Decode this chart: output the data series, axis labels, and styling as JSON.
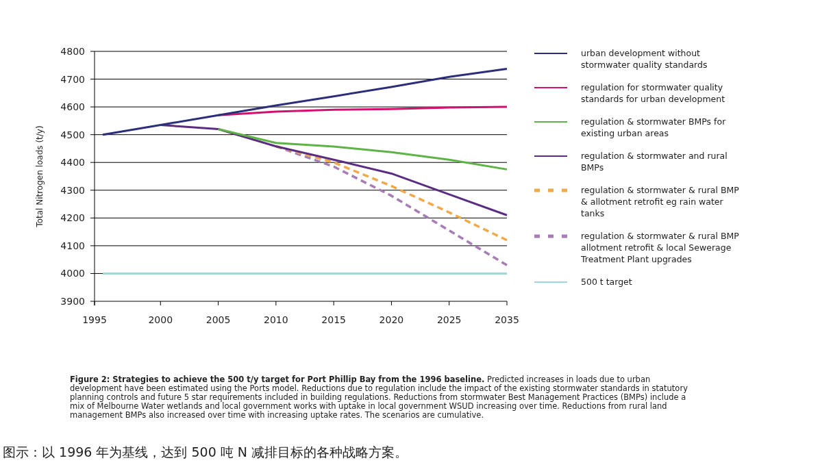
{
  "chart_data": {
    "type": "line",
    "ylabel": "Total Nitrogen loads (t/y)",
    "categories": [
      "1995",
      "2000",
      "2005",
      "2010",
      "2015",
      "2020",
      "2025",
      "2035"
    ],
    "ylim": [
      3900,
      4800
    ],
    "yticks": [
      3900,
      4000,
      4100,
      4200,
      4300,
      4400,
      4500,
      4600,
      4700,
      4800
    ],
    "grid": "y",
    "legend": "right",
    "marker": "none",
    "series": [
      {
        "name": "urban development without stormwater quality standards",
        "color": "#2b2f7a",
        "line_style": "solid",
        "values": [
          4500,
          4535,
          4570,
          4605,
          4638,
          4672,
          4708,
          4737
        ]
      },
      {
        "name": "regulation for stormwater quality standards for urban development",
        "color": "#d4106e",
        "line_style": "solid",
        "values": [
          null,
          null,
          4570,
          4583,
          4590,
          4592,
          4598,
          4600
        ]
      },
      {
        "name": "regulation & stormwater BMPs for existing urban areas",
        "color": "#5db345",
        "line_style": "solid",
        "values": [
          null,
          null,
          4520,
          4470,
          4457,
          4437,
          4410,
          4375
        ]
      },
      {
        "name": "regulation & stormwater and rural BMPs",
        "color": "#5a2d82",
        "line_style": "solid",
        "values": [
          null,
          4535,
          4520,
          4458,
          4410,
          4360,
          4285,
          4210
        ]
      },
      {
        "name": "regulation & stormwater & rural BMP & allotment retrofit eg rain water tanks",
        "color": "#f0a848",
        "line_style": "dashed",
        "values": [
          null,
          null,
          null,
          4458,
          4400,
          4315,
          4220,
          4120
        ]
      },
      {
        "name": "regulation & stormwater & rural BMP allotment retrofit & local Sewerage Treatment Plant upgrades",
        "color": "#a77bb5",
        "line_style": "dashed",
        "values": [
          null,
          null,
          null,
          4458,
          4385,
          4280,
          4155,
          4030
        ]
      },
      {
        "name": "500 t target",
        "color": "#9fd6d6",
        "line_style": "solid",
        "values": [
          4000,
          4000,
          4000,
          4000,
          4000,
          4000,
          4000,
          4000
        ]
      }
    ],
    "annotations": [
      "Figure 2: Strategies to achieve the 500 t/y target for Port Phillip Bay from the 1996 baseline.",
      "Predicted increases in loads due to urban development have been estimated using the Ports model. Reductions due to regulation include the impact of the existing stormwater standards in statutory planning controls and future 5 star requirements included in building regulations. Reductions from stormwater Best Management Practices  (BMPs) include a mix of Melbourne Water wetlands and local government works with uptake in local government WSUD increasing over time. Reductions from rural land management BMPs also increased over time with increasing uptake rates. The scenarios are cumulative.",
      "图示：以 1996 年为基线，达到 500 吨 N 减排目标的各种战略方案。"
    ]
  }
}
